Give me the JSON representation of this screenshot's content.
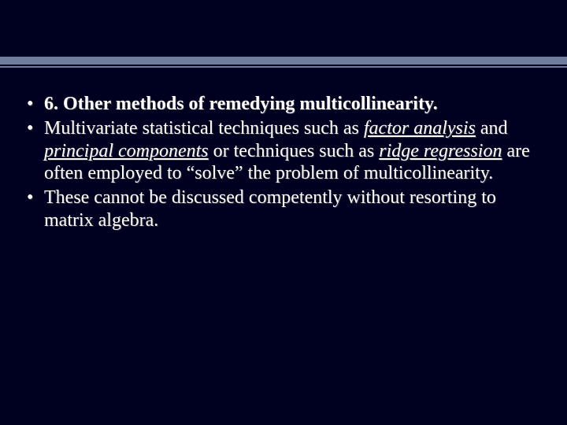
{
  "slide": {
    "background_color": "#000020",
    "band_color": "#6f7b9c",
    "text_color": "#ffffff",
    "font_family": "Times New Roman",
    "body_fontsize_pt": 24,
    "bullets": [
      {
        "runs": [
          {
            "text": "6. Other methods of remedying multicollinearity.",
            "bold": true
          }
        ]
      },
      {
        "runs": [
          {
            "text": "Multivariate statistical techniques such as "
          },
          {
            "text": "factor analysis",
            "italic_underline": true
          },
          {
            "text": " and "
          },
          {
            "text": "principal components",
            "italic_underline": true
          },
          {
            "text": " or techniques such as "
          },
          {
            "text": "ridge regression",
            "italic_underline": true
          },
          {
            "text": " are often employed to “solve” the problem of multicollinearity."
          }
        ]
      },
      {
        "runs": [
          {
            "text": "These cannot be discussed competently without resorting to matrix algebra."
          }
        ]
      }
    ]
  }
}
